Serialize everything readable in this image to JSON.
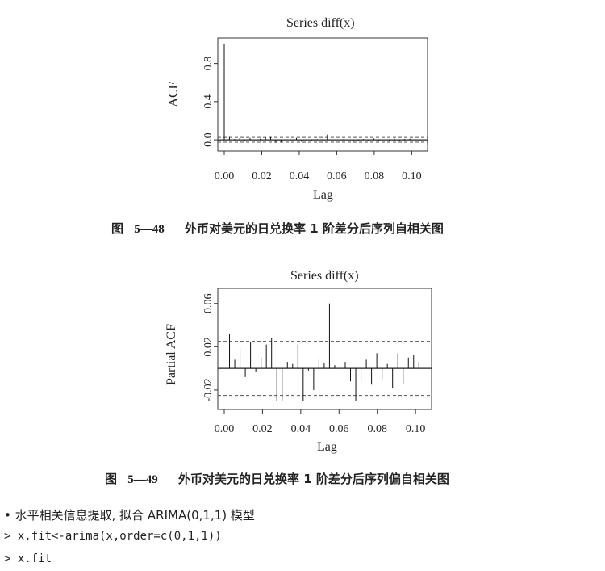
{
  "chart_data": [
    {
      "type": "bar",
      "title": "Series diff(x)",
      "xlabel": "Lag",
      "ylabel": "ACF",
      "xlim": [
        0,
        0.105
      ],
      "ylim": [
        -0.05,
        1.0
      ],
      "x_ticks": [
        "0.00",
        "0.02",
        "0.04",
        "0.06",
        "0.08",
        "0.10"
      ],
      "y_ticks": [
        "0.0",
        "0.4",
        "0.8"
      ],
      "confidence_band": 0.025,
      "lags": [
        0.0,
        0.00275,
        0.0055,
        0.00825,
        0.011,
        0.01375,
        0.0165,
        0.01925,
        0.022,
        0.02475,
        0.0275,
        0.03025,
        0.033,
        0.03575,
        0.0385,
        0.04125,
        0.044,
        0.04675,
        0.0495,
        0.05225,
        0.055,
        0.05775,
        0.0605,
        0.06325,
        0.066,
        0.06875,
        0.0715,
        0.07425,
        0.077,
        0.07975,
        0.0825,
        0.08525,
        0.088,
        0.09075,
        0.0935,
        0.09625,
        0.099,
        0.10175
      ],
      "values": [
        1.0,
        0.03,
        0.008,
        0.018,
        -0.008,
        0.02,
        -0.003,
        0.012,
        0.025,
        0.028,
        -0.03,
        -0.025,
        0.006,
        0.004,
        0.02,
        -0.02,
        -0.002,
        -0.01,
        0.008,
        0.005,
        0.055,
        0.003,
        0.004,
        0.006,
        -0.01,
        -0.026,
        -0.012,
        0.008,
        -0.012,
        0.015,
        -0.01,
        0.004,
        -0.015,
        0.014,
        -0.012,
        0.01,
        0.012,
        0.006
      ]
    },
    {
      "type": "bar",
      "title": "Series diff(x)",
      "xlabel": "Lag",
      "ylabel": "Partial ACF",
      "xlim": [
        0,
        0.105
      ],
      "ylim": [
        -0.032,
        0.068
      ],
      "x_ticks": [
        "0.00",
        "0.02",
        "0.04",
        "0.06",
        "0.08",
        "0.10"
      ],
      "y_ticks": [
        "-0.02",
        "0.02",
        "0.06"
      ],
      "confidence_band": 0.025,
      "lags": [
        0.00275,
        0.0055,
        0.00825,
        0.011,
        0.01375,
        0.0165,
        0.01925,
        0.022,
        0.02475,
        0.0275,
        0.03025,
        0.033,
        0.03575,
        0.0385,
        0.04125,
        0.044,
        0.04675,
        0.0495,
        0.05225,
        0.055,
        0.05775,
        0.0605,
        0.06325,
        0.066,
        0.06875,
        0.0715,
        0.07425,
        0.077,
        0.07975,
        0.0825,
        0.08525,
        0.088,
        0.09075,
        0.0935,
        0.09625,
        0.099,
        0.10175
      ],
      "values": [
        0.032,
        0.008,
        0.018,
        -0.008,
        0.024,
        -0.003,
        0.01,
        0.022,
        0.028,
        -0.03,
        -0.03,
        0.006,
        0.004,
        0.022,
        -0.03,
        -0.002,
        -0.02,
        0.008,
        0.005,
        0.06,
        0.003,
        0.004,
        0.006,
        -0.012,
        -0.03,
        -0.012,
        0.008,
        -0.015,
        0.014,
        -0.01,
        0.004,
        -0.018,
        0.014,
        -0.015,
        0.01,
        0.012,
        0.006
      ]
    }
  ],
  "captions": {
    "fig48": {
      "label": "图",
      "num": "5—48",
      "text": "外币对美元的日兑换率 1 阶差分后序列自相关图"
    },
    "fig49": {
      "label": "图",
      "num": "5—49",
      "text": "外币对美元的日兑换率 1 阶差分后序列偏自相关图"
    }
  },
  "body": {
    "bullet_line": "• 水平相关信息提取, 拟合 ARIMA(0,1,1) 模型",
    "code1": "> x.fit<-arima(x,order=c(0,1,1))",
    "code2": "> x.fit"
  }
}
